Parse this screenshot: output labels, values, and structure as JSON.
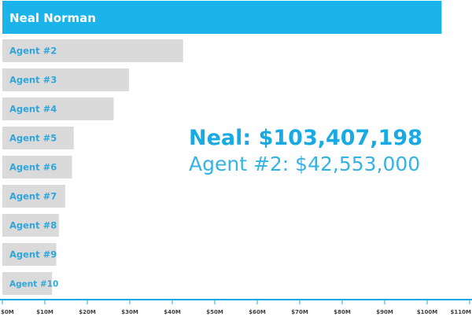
{
  "chart_data": {
    "type": "bar",
    "orientation": "horizontal",
    "categories": [
      "Neal Norman",
      "Agent #2",
      "Agent #3",
      "Agent #4",
      "Agent #5",
      "Agent #6",
      "Agent #7",
      "Agent #8",
      "Agent #9",
      "Agent #10"
    ],
    "values": [
      103407198,
      42553000,
      29800000,
      26200000,
      16800000,
      16400000,
      14800000,
      13300000,
      12700000,
      11700000
    ],
    "highlight_index": 0,
    "x_ticks": [
      "$0M",
      "$10M",
      "$20M",
      "$30M",
      "$40M",
      "$50M",
      "$60M",
      "$70M",
      "$80M",
      "$90M",
      "$100M",
      "$110M"
    ],
    "xlim": [
      0,
      110000000
    ],
    "grid": false,
    "title": "",
    "xlabel": "",
    "ylabel": "",
    "annotations": {
      "primary": "Neal: $103,407,198",
      "secondary": "Agent #2: $42,553,000"
    },
    "colors": {
      "highlight_bar": "#1ab3ea",
      "highlight_label": "#ffffff",
      "bar": "#dadadb",
      "label": "#2fa6d9",
      "axis": "#1aaae3",
      "tick_label": "#3e3e3e"
    }
  }
}
